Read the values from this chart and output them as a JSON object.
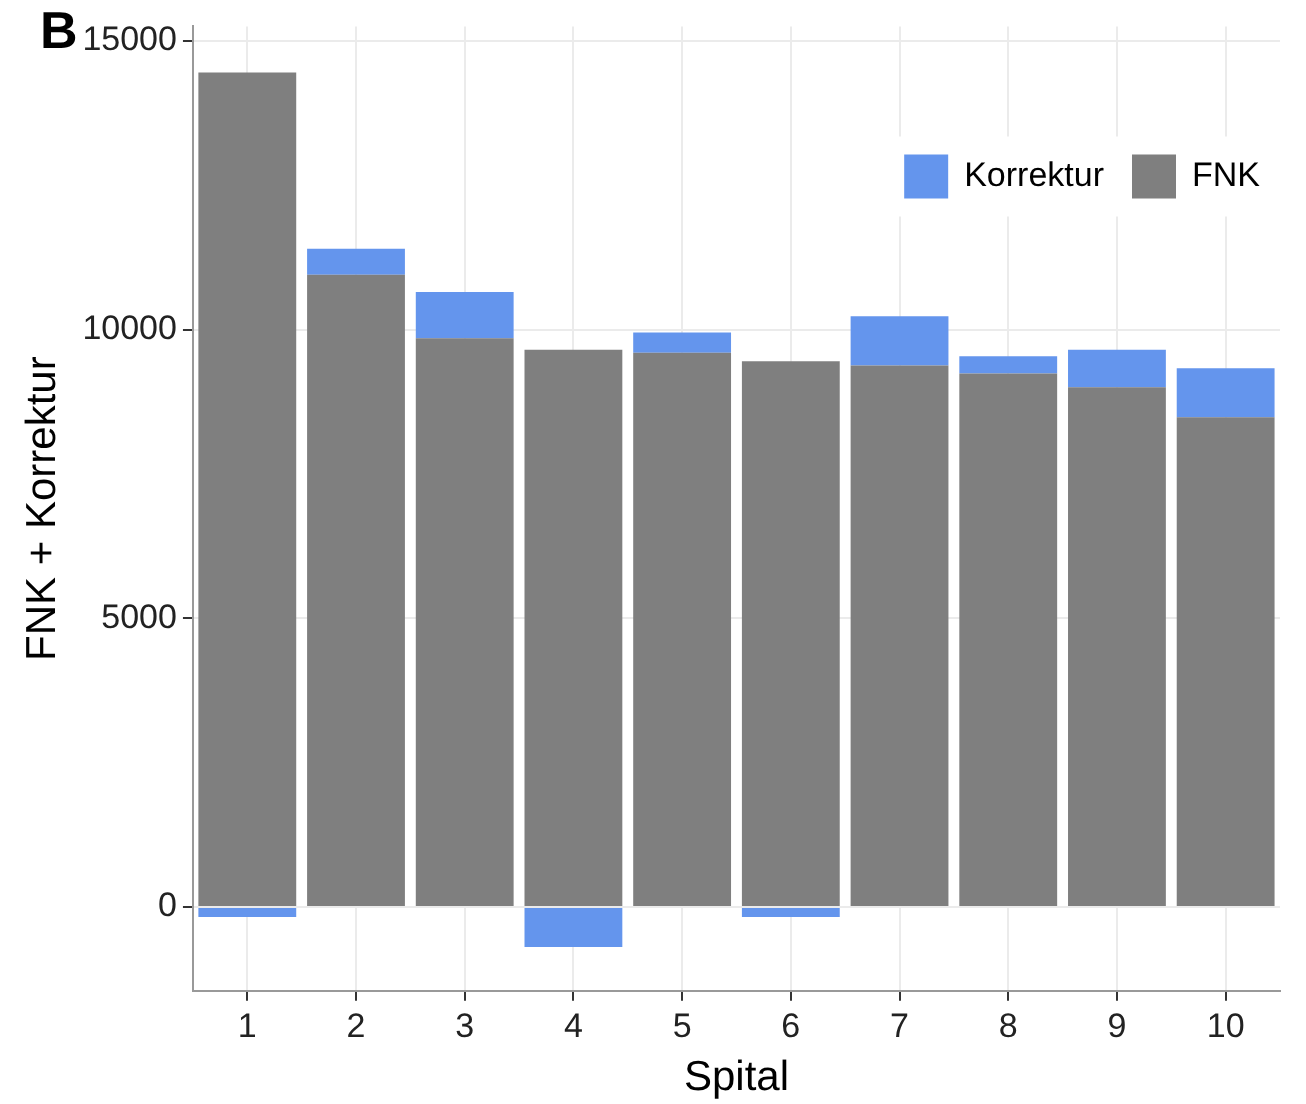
{
  "chart_data": {
    "type": "bar",
    "stacked": true,
    "xlabel": "Spital",
    "ylabel": "FNK + Korrektur",
    "annotations": [
      "B"
    ],
    "categories": [
      "1",
      "2",
      "3",
      "4",
      "5",
      "6",
      "7",
      "8",
      "9",
      "10"
    ],
    "series": [
      {
        "name": "FNK",
        "color": "#7f7f7f",
        "values": [
          14450,
          10950,
          9850,
          9650,
          9600,
          9450,
          9380,
          9240,
          9000,
          8480
        ]
      },
      {
        "name": "Korrektur",
        "color": "#6495ed",
        "values": [
          -170,
          450,
          800,
          -690,
          350,
          -170,
          850,
          300,
          650,
          850
        ]
      }
    ],
    "ylim": [
      -1450,
      15250
    ],
    "yticks": [
      0,
      5000,
      10000,
      15000
    ],
    "grid": true,
    "legend": "top right"
  }
}
